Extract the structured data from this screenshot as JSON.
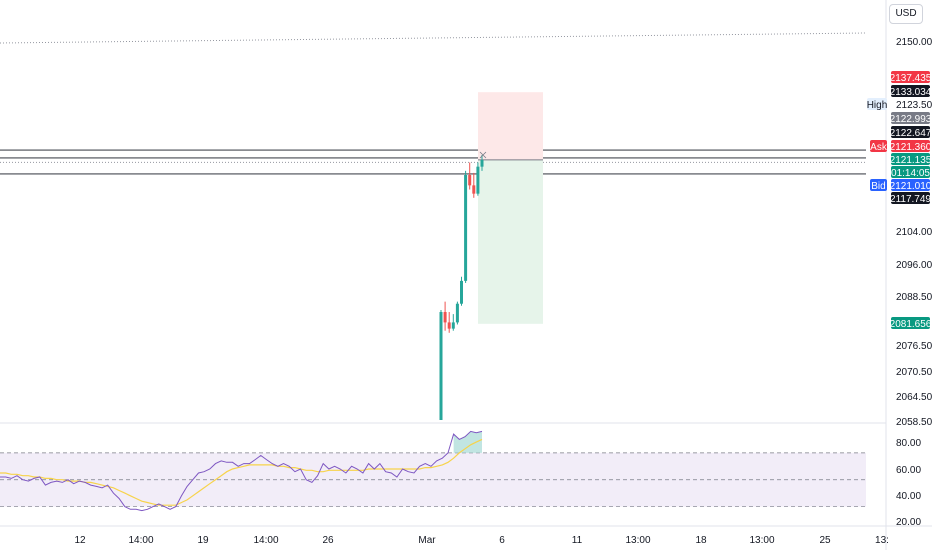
{
  "currency_button": "USD",
  "colors": {
    "up": "#26a69a",
    "down": "#ef5350",
    "ask": "#f23645",
    "bid": "#2962ff",
    "last": "#131722",
    "green_badge": "#089981",
    "gray_badge": "#787b86",
    "rsi": "#7e57c2",
    "rsi_ma": "#f7d34a",
    "profit_fill": "#e6f4ea",
    "loss_fill": "#fde8e8"
  },
  "price_axis": {
    "ticks": [
      "2150.000",
      "2123.500",
      "2104.000",
      "2096.000",
      "2088.500",
      "2076.500",
      "2070.500",
      "2064.500",
      "2058.500"
    ],
    "badges": [
      {
        "text": "2137.435",
        "style": "red"
      },
      {
        "text": "2133.034",
        "style": "dark"
      },
      {
        "text": "2122.993",
        "style": "gray"
      },
      {
        "text": "2122.647",
        "style": "dark"
      },
      {
        "text": "2121.360",
        "style": "red"
      },
      {
        "text": "2121.135",
        "style": "green"
      },
      {
        "text": "01:14:05",
        "style": "green"
      },
      {
        "text": "2121.010",
        "style": "blue"
      },
      {
        "text": "2117.749",
        "style": "dark"
      },
      {
        "text": "2081.656",
        "style": "green"
      }
    ],
    "tags": [
      {
        "text": "High",
        "style": "light"
      },
      {
        "text": "Ask",
        "style": "red"
      },
      {
        "text": "Bid",
        "style": "blue"
      }
    ]
  },
  "rsi_axis": {
    "ticks": [
      "80.00",
      "60.00",
      "40.00",
      "20.00"
    ]
  },
  "time_axis": {
    "labels": [
      "12",
      "14:00",
      "19",
      "14:00",
      "26",
      "Mar",
      "6",
      "11",
      "13:00",
      "18",
      "13:00",
      "25",
      "13:"
    ]
  },
  "chart_data": {
    "type": "candlestick",
    "candles": [
      {
        "open": 2058.5,
        "high": 2085.0,
        "low": 2058.5,
        "close": 2084.5
      },
      {
        "open": 2084.5,
        "high": 2087.0,
        "low": 2080.0,
        "close": 2082.0
      },
      {
        "open": 2082.0,
        "high": 2084.5,
        "low": 2079.5,
        "close": 2080.5
      },
      {
        "open": 2080.5,
        "high": 2084.0,
        "low": 2080.0,
        "close": 2082.0
      },
      {
        "open": 2082.0,
        "high": 2087.0,
        "low": 2081.5,
        "close": 2086.5
      },
      {
        "open": 2086.5,
        "high": 2093.0,
        "low": 2086.0,
        "close": 2092.0
      },
      {
        "open": 2092.0,
        "high": 2118.5,
        "low": 2091.5,
        "close": 2117.5
      },
      {
        "open": 2117.5,
        "high": 2120.5,
        "low": 2114.0,
        "close": 2115.0
      },
      {
        "open": 2115.0,
        "high": 2118.0,
        "low": 2112.0,
        "close": 2113.0
      },
      {
        "open": 2113.0,
        "high": 2120.5,
        "low": 2112.5,
        "close": 2119.5
      },
      {
        "open": 2119.5,
        "high": 2122.3,
        "low": 2118.5,
        "close": 2121.1
      }
    ],
    "position": {
      "entry": 2121.135,
      "stop": 2137.435,
      "target": 2081.656
    },
    "levels": {
      "high": 2123.5,
      "ask": 2121.36,
      "bid": 2121.01,
      "low_level": 2117.749
    },
    "rsi": [
      52,
      52,
      51,
      53,
      50,
      49,
      51,
      52,
      46,
      48,
      49,
      48,
      50,
      47,
      49,
      48,
      46,
      45,
      44,
      46,
      40,
      36,
      30,
      28,
      28,
      27,
      28,
      30,
      32,
      30,
      28,
      30,
      38,
      45,
      50,
      55,
      56,
      58,
      62,
      64,
      63,
      63,
      60,
      62,
      62,
      65,
      68,
      65,
      62,
      60,
      62,
      60,
      56,
      58,
      50,
      48,
      53,
      62,
      58,
      60,
      58,
      55,
      60,
      58,
      55,
      62,
      58,
      62,
      56,
      55,
      52,
      58,
      56,
      55,
      60,
      62,
      60,
      64,
      66,
      70,
      84,
      80,
      82,
      86,
      85,
      86
    ],
    "rsi_ma": [
      55,
      55,
      54,
      54,
      53,
      53,
      52,
      52,
      51,
      51,
      50,
      50,
      49,
      49,
      49,
      48,
      48,
      47,
      46,
      45,
      44,
      42,
      40,
      38,
      36,
      34,
      33,
      32,
      31,
      31,
      31,
      31,
      33,
      35,
      38,
      41,
      44,
      47,
      50,
      53,
      56,
      58,
      59,
      60,
      61,
      61,
      61,
      61,
      61,
      60,
      60,
      59,
      59,
      58,
      57,
      57,
      56,
      56,
      57,
      57,
      57,
      57,
      57,
      57,
      57,
      58,
      58,
      58,
      58,
      58,
      58,
      58,
      58,
      58,
      58,
      59,
      59,
      60,
      61,
      63,
      66,
      70,
      73,
      76,
      78,
      80
    ],
    "rsi_levels": [
      70,
      50,
      30
    ],
    "rsi_range": [
      20,
      90
    ]
  }
}
